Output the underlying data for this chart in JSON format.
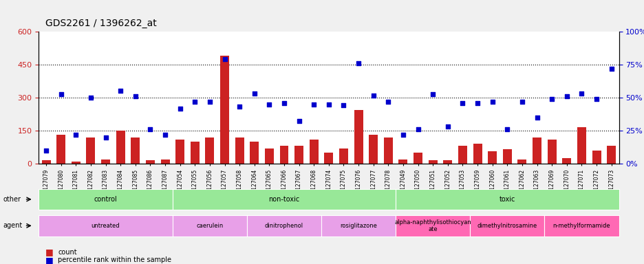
{
  "title": "GDS2261 / 1396262_at",
  "samples": [
    "GSM127079",
    "GSM127080",
    "GSM127081",
    "GSM127082",
    "GSM127083",
    "GSM127084",
    "GSM127085",
    "GSM127086",
    "GSM127087",
    "GSM127054",
    "GSM127055",
    "GSM127056",
    "GSM127057",
    "GSM127058",
    "GSM127064",
    "GSM127065",
    "GSM127066",
    "GSM127067",
    "GSM127068",
    "GSM127074",
    "GSM127075",
    "GSM127076",
    "GSM127077",
    "GSM127078",
    "GSM127049",
    "GSM127050",
    "GSM127051",
    "GSM127052",
    "GSM127053",
    "GSM127059",
    "GSM127060",
    "GSM127061",
    "GSM127062",
    "GSM127063",
    "GSM127069",
    "GSM127070",
    "GSM127071",
    "GSM127072",
    "GSM127073"
  ],
  "counts": [
    15,
    130,
    10,
    120,
    20,
    150,
    120,
    15,
    20,
    110,
    100,
    120,
    490,
    120,
    100,
    70,
    80,
    80,
    110,
    50,
    70,
    245,
    130,
    120,
    20,
    50,
    15,
    15,
    80,
    90,
    55,
    65,
    20,
    120,
    110,
    25,
    165,
    60,
    80
  ],
  "percentile": [
    60,
    315,
    130,
    300,
    120,
    330,
    305,
    155,
    130,
    250,
    280,
    280,
    475,
    260,
    320,
    270,
    275,
    195,
    270,
    270,
    265,
    455,
    310,
    280,
    130,
    155,
    315,
    170,
    275,
    275,
    280,
    155,
    280,
    210,
    295,
    305,
    320,
    295,
    430
  ],
  "groups_other": [
    {
      "label": "control",
      "start": 0,
      "end": 9,
      "color": "#90EE90"
    },
    {
      "label": "non-toxic",
      "start": 9,
      "end": 24,
      "color": "#90EE90"
    },
    {
      "label": "toxic",
      "start": 24,
      "end": 39,
      "color": "#90EE90"
    }
  ],
  "groups_agent": [
    {
      "label": "untreated",
      "start": 0,
      "end": 9,
      "color": "#DDA0DD"
    },
    {
      "label": "caerulein",
      "start": 9,
      "end": 14,
      "color": "#DDA0DD"
    },
    {
      "label": "dinitrophenol",
      "start": 14,
      "end": 19,
      "color": "#DDA0DD"
    },
    {
      "label": "rosiglitazone",
      "start": 19,
      "end": 24,
      "color": "#DDA0DD"
    },
    {
      "label": "alpha-naphthylisothiocyan\nate",
      "start": 24,
      "end": 29,
      "color": "#FF69B4"
    },
    {
      "label": "dimethylnitrosamine",
      "start": 29,
      "end": 34,
      "color": "#FF69B4"
    },
    {
      "label": "n-methylformamide",
      "start": 34,
      "end": 39,
      "color": "#FF69B4"
    }
  ],
  "bar_color": "#CC2222",
  "scatter_color": "#0000CC",
  "ylim_left": [
    0,
    600
  ],
  "ylim_right": [
    0,
    100
  ],
  "yticks_left": [
    0,
    150,
    300,
    450,
    600
  ],
  "yticks_right": [
    0,
    25,
    50,
    75,
    100
  ],
  "hline_values": [
    150,
    300,
    450
  ],
  "background_color": "#f0f0f0",
  "plot_bg": "#ffffff",
  "title_fontsize": 10,
  "axis_color_left": "#CC2222",
  "axis_color_right": "#0000CC"
}
